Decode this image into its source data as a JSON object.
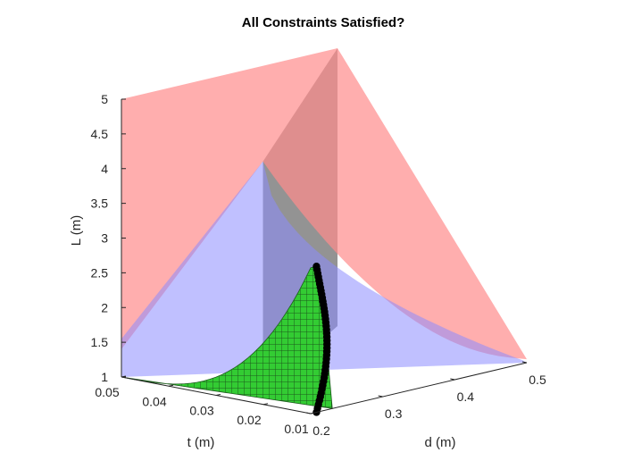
{
  "chart_data": {
    "type": "surface3d",
    "title": "All Constraints Satisfied?",
    "xlabel": "d (m)",
    "ylabel": "t (m)",
    "zlabel": "L (m)",
    "x_ticks": [
      "0.2",
      "0.3",
      "0.4",
      "0.5"
    ],
    "y_ticks": [
      "0.01",
      "0.02",
      "0.03",
      "0.04",
      "0.05"
    ],
    "z_ticks": [
      "1",
      "1.5",
      "2",
      "2.5",
      "3",
      "3.5",
      "4",
      "4.5",
      "5"
    ],
    "xlim": [
      0.2,
      0.5
    ],
    "ylim": [
      0.01,
      0.05
    ],
    "zlim": [
      1,
      5
    ],
    "grid": false,
    "series": [
      {
        "color": "#ff8c8c",
        "type": "translucent constraint surface"
      },
      {
        "color": "#8c8cff",
        "type": "translucent constraint surface"
      },
      {
        "color": "#808080",
        "type": "translucent constraint surface"
      },
      {
        "color": "#33cc33",
        "type": "feasible region mesh"
      },
      {
        "color": "#000000",
        "type": "boundary points"
      }
    ]
  }
}
